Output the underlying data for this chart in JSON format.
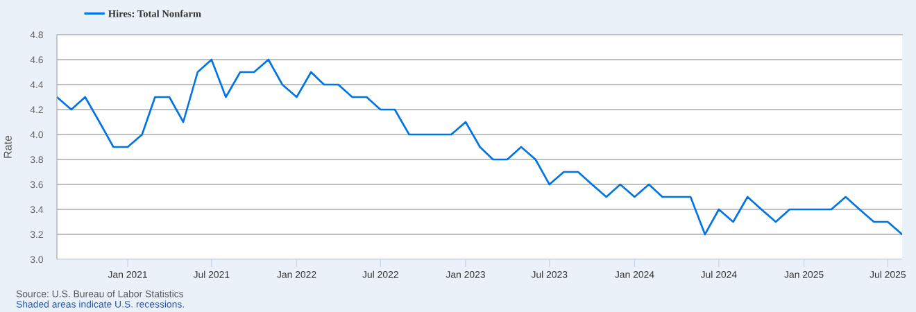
{
  "chart_data": {
    "type": "line",
    "ylabel": "Rate",
    "annotations": [
      "Source: U.S. Bureau of Labor Statistics",
      "Shaded areas indicate U.S. recessions."
    ],
    "x": [
      "2020-08",
      "2020-09",
      "2020-10",
      "2020-11",
      "2020-12",
      "2021-01",
      "2021-02",
      "2021-03",
      "2021-04",
      "2021-05",
      "2021-06",
      "2021-07",
      "2021-08",
      "2021-09",
      "2021-10",
      "2021-11",
      "2021-12",
      "2022-01",
      "2022-02",
      "2022-03",
      "2022-04",
      "2022-05",
      "2022-06",
      "2022-07",
      "2022-08",
      "2022-09",
      "2022-10",
      "2022-11",
      "2022-12",
      "2023-01",
      "2023-02",
      "2023-03",
      "2023-04",
      "2023-05",
      "2023-06",
      "2023-07",
      "2023-08",
      "2023-09",
      "2023-10",
      "2023-11",
      "2023-12",
      "2024-01",
      "2024-02",
      "2024-03",
      "2024-04",
      "2024-05",
      "2024-06",
      "2024-07",
      "2024-08",
      "2024-09",
      "2024-10",
      "2024-11",
      "2024-12",
      "2025-01",
      "2025-02",
      "2025-03",
      "2025-04",
      "2025-05",
      "2025-06",
      "2025-07",
      "2025-08"
    ],
    "series": [
      {
        "name": "Hires: Total Nonfarm",
        "color": "#0073e6",
        "values": [
          4.3,
          4.2,
          4.3,
          4.1,
          3.9,
          3.9,
          4.0,
          4.3,
          4.3,
          4.1,
          4.5,
          4.6,
          4.3,
          4.5,
          4.5,
          4.6,
          4.4,
          4.3,
          4.5,
          4.4,
          4.4,
          4.3,
          4.3,
          4.2,
          4.2,
          4.0,
          4.0,
          4.0,
          4.0,
          4.1,
          3.9,
          3.8,
          3.8,
          3.9,
          3.8,
          3.6,
          3.7,
          3.7,
          3.6,
          3.5,
          3.6,
          3.5,
          3.6,
          3.5,
          3.5,
          3.5,
          3.2,
          3.4,
          3.3,
          3.5,
          3.4,
          3.3,
          3.4,
          3.4,
          3.4,
          3.4,
          3.5,
          3.4,
          3.3,
          3.3,
          3.2
        ]
      }
    ],
    "xlim": [
      "2020-08",
      "2025-08"
    ],
    "xticks": [
      {
        "value": "2021-01",
        "label": "Jan 2021"
      },
      {
        "value": "2021-07",
        "label": "Jul 2021"
      },
      {
        "value": "2022-01",
        "label": "Jan 2022"
      },
      {
        "value": "2022-07",
        "label": "Jul 2022"
      },
      {
        "value": "2023-01",
        "label": "Jan 2023"
      },
      {
        "value": "2023-07",
        "label": "Jul 2023"
      },
      {
        "value": "2024-01",
        "label": "Jan 2024"
      },
      {
        "value": "2024-07",
        "label": "Jul 2024"
      },
      {
        "value": "2025-01",
        "label": "Jan 2025"
      },
      {
        "value": "2025-07",
        "label": "Jul 2025"
      }
    ],
    "ylim": [
      3,
      4.8
    ],
    "yticks": [
      {
        "value": 3,
        "label": "3.0"
      },
      3.2,
      3.4,
      3.6,
      3.8,
      {
        "value": 4,
        "label": "4.0"
      },
      4.2,
      4.4,
      4.6,
      4.8
    ],
    "grid": "y",
    "legend": "top left",
    "marker": "none",
    "line_style": "solid"
  }
}
